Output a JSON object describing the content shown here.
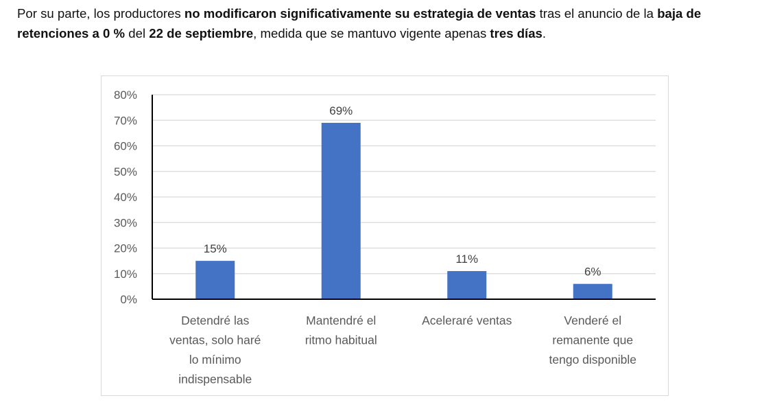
{
  "paragraph": {
    "segments": [
      {
        "text": "Por su parte, los productores ",
        "bold": false
      },
      {
        "text": "no modificaron significativamente su estrategia de ventas",
        "bold": true
      },
      {
        "text": " tras el anuncio de la ",
        "bold": false
      },
      {
        "text": "baja de retenciones a 0 %",
        "bold": true
      },
      {
        "text": " del ",
        "bold": false
      },
      {
        "text": "22 de septiembre",
        "bold": true
      },
      {
        "text": ", medida que se mantuvo vigente apenas ",
        "bold": false
      },
      {
        "text": "tres días",
        "bold": true
      },
      {
        "text": ".",
        "bold": false
      }
    ]
  },
  "chart_data": {
    "type": "bar",
    "title": "",
    "xlabel": "",
    "ylabel": "",
    "ylim": [
      0,
      80
    ],
    "yticks": [
      "0%",
      "10%",
      "20%",
      "30%",
      "40%",
      "50%",
      "60%",
      "70%",
      "80%"
    ],
    "grid": true,
    "color": "#4472C4",
    "categories": [
      [
        "Detendré las",
        "ventas, solo haré",
        "lo mínimo",
        "indispensable"
      ],
      [
        "Mantendré el",
        "ritmo habitual"
      ],
      [
        "Aceleraré ventas"
      ],
      [
        "Venderé el",
        "remanente que",
        "tengo disponible"
      ]
    ],
    "values": [
      15,
      69,
      11,
      6
    ],
    "data_labels": [
      "15%",
      "69%",
      "11%",
      "6%"
    ]
  }
}
